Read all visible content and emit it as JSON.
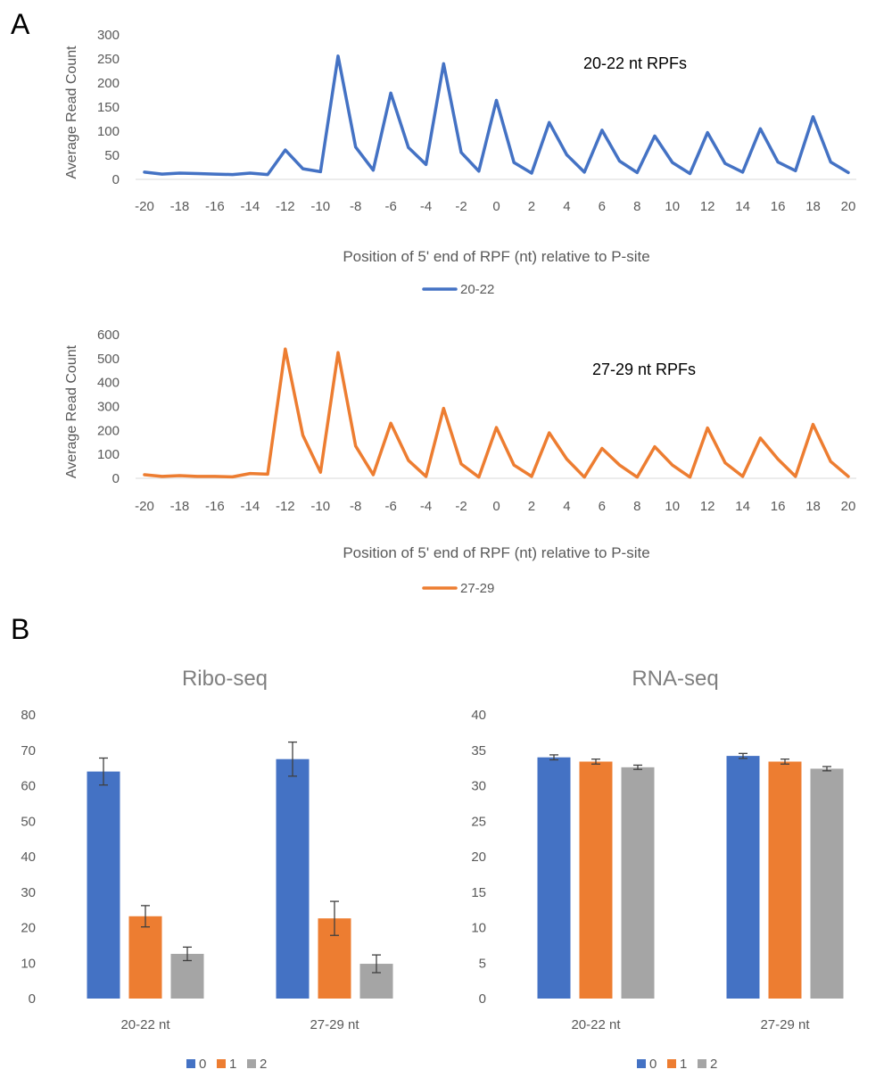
{
  "panel_labels": {
    "a": "A",
    "b": "B"
  },
  "colors": {
    "blue": "#4472C4",
    "orange": "#ED7D31",
    "gray": "#A5A5A5",
    "axis_text": "#595959",
    "title_text": "#7F7F7F"
  },
  "chart_data": [
    {
      "id": "line1",
      "type": "line",
      "title": "20-22 nt RPFs",
      "xlabel": "Position of 5' end of RPF (nt) relative to P-site",
      "ylabel": "Average Read Count",
      "x": [
        -20,
        -19,
        -18,
        -17,
        -16,
        -15,
        -14,
        -13,
        -12,
        -11,
        -10,
        -9,
        -8,
        -7,
        -6,
        -5,
        -4,
        -3,
        -2,
        -1,
        0,
        1,
        2,
        3,
        4,
        5,
        6,
        7,
        8,
        9,
        10,
        11,
        12,
        13,
        14,
        15,
        16,
        17,
        18,
        19,
        20
      ],
      "x_ticks": [
        "-20",
        "-18",
        "-16",
        "-14",
        "-12",
        "-10",
        "-8",
        "-6",
        "-4",
        "-2",
        "0",
        "2",
        "4",
        "6",
        "8",
        "10",
        "12",
        "14",
        "16",
        "18",
        "20"
      ],
      "y_ticks": [
        "0",
        "50",
        "100",
        "150",
        "200",
        "250",
        "300"
      ],
      "ylim": [
        0,
        300
      ],
      "series": [
        {
          "name": "20-22",
          "color": "#4472C4",
          "values": [
            15,
            11,
            13,
            12,
            11,
            10,
            13,
            10,
            61,
            22,
            16,
            256,
            67,
            19,
            179,
            66,
            31,
            240,
            56,
            17,
            164,
            35,
            13,
            118,
            51,
            15,
            102,
            38,
            14,
            90,
            35,
            12,
            97,
            33,
            15,
            105,
            36,
            18,
            130,
            36,
            14
          ]
        }
      ]
    },
    {
      "id": "line2",
      "type": "line",
      "title": "27-29 nt RPFs",
      "xlabel": "Position of 5' end of RPF (nt) relative to P-site",
      "ylabel": "Average Read Count",
      "x": [
        -20,
        -19,
        -18,
        -17,
        -16,
        -15,
        -14,
        -13,
        -12,
        -11,
        -10,
        -9,
        -8,
        -7,
        -6,
        -5,
        -4,
        -3,
        -2,
        -1,
        0,
        1,
        2,
        3,
        4,
        5,
        6,
        7,
        8,
        9,
        10,
        11,
        12,
        13,
        14,
        15,
        16,
        17,
        18,
        19,
        20
      ],
      "x_ticks": [
        "-20",
        "-18",
        "-16",
        "-14",
        "-12",
        "-10",
        "-8",
        "-6",
        "-4",
        "-2",
        "0",
        "2",
        "4",
        "6",
        "8",
        "10",
        "12",
        "14",
        "16",
        "18",
        "20"
      ],
      "y_ticks": [
        "0",
        "100",
        "200",
        "300",
        "400",
        "500",
        "600"
      ],
      "ylim": [
        0,
        600
      ],
      "series": [
        {
          "name": "27-29",
          "color": "#ED7D31",
          "values": [
            15,
            8,
            11,
            8,
            8,
            6,
            20,
            17,
            540,
            180,
            25,
            525,
            135,
            15,
            230,
            75,
            8,
            292,
            60,
            5,
            212,
            55,
            8,
            190,
            80,
            5,
            125,
            55,
            5,
            132,
            55,
            5,
            210,
            65,
            8,
            168,
            80,
            8,
            225,
            70,
            8
          ]
        }
      ]
    },
    {
      "id": "bar1",
      "type": "bar",
      "title": "Ribo-seq",
      "categories": [
        "20-22 nt",
        "27-29 nt"
      ],
      "y_ticks": [
        "0",
        "10",
        "20",
        "30",
        "40",
        "50",
        "60",
        "70",
        "80"
      ],
      "ylim": [
        0,
        80
      ],
      "series": [
        {
          "name": "0",
          "color": "#4472C4",
          "values": [
            64.0,
            67.5
          ],
          "errors": [
            3.8,
            4.8
          ]
        },
        {
          "name": "1",
          "color": "#ED7D31",
          "values": [
            23.2,
            22.6
          ],
          "errors": [
            3.0,
            4.8
          ]
        },
        {
          "name": "2",
          "color": "#A5A5A5",
          "values": [
            12.6,
            9.8
          ],
          "errors": [
            1.9,
            2.5
          ]
        }
      ]
    },
    {
      "id": "bar2",
      "type": "bar",
      "title": "RNA-seq",
      "categories": [
        "20-22 nt",
        "27-29 nt"
      ],
      "y_ticks": [
        "0",
        "5",
        "10",
        "15",
        "20",
        "25",
        "30",
        "35",
        "40"
      ],
      "ylim": [
        0,
        40
      ],
      "series": [
        {
          "name": "0",
          "color": "#4472C4",
          "values": [
            34.0,
            34.2
          ],
          "errors": [
            0.35,
            0.35
          ]
        },
        {
          "name": "1",
          "color": "#ED7D31",
          "values": [
            33.4,
            33.4
          ],
          "errors": [
            0.35,
            0.35
          ]
        },
        {
          "name": "2",
          "color": "#A5A5A5",
          "values": [
            32.6,
            32.4
          ],
          "errors": [
            0.3,
            0.3
          ]
        }
      ]
    }
  ]
}
